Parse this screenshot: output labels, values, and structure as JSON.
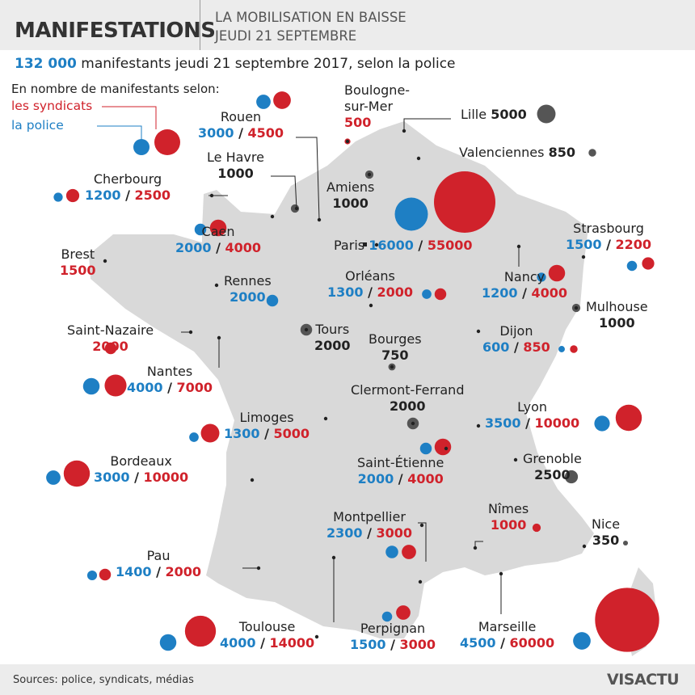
{
  "header": {
    "title": "MANIFESTATIONS",
    "subtitle_line1": "LA MOBILISATION EN BAISSE",
    "subtitle_line2": "JEUDI 21 SEPTEMBRE"
  },
  "headline": {
    "number": "132 000",
    "text": " manifestants jeudi 21 septembre 2017, selon la police"
  },
  "legend": {
    "title": "En nombre de manifestants selon:",
    "syndicats": "les syndicats",
    "police": "la police"
  },
  "colors": {
    "police": "#1e7fc4",
    "syndicats": "#d0222b",
    "total": "#555555",
    "map": "#d9d9d9"
  },
  "cities": [
    {
      "id": "boulogne",
      "name": "Boulogne-\nsur-Mer",
      "syndicats": "500"
    },
    {
      "id": "lille",
      "name": "Lille",
      "total": "5000"
    },
    {
      "id": "valenciennes",
      "name": "Valenciennes",
      "total": "850"
    },
    {
      "id": "rouen",
      "name": "Rouen",
      "police": "3000",
      "syndicats": "4500"
    },
    {
      "id": "lehavre",
      "name": "Le Havre",
      "total": "1000"
    },
    {
      "id": "amiens",
      "name": "Amiens",
      "total": "1000"
    },
    {
      "id": "cherbourg",
      "name": "Cherbourg",
      "police": "1200",
      "syndicats": "2500"
    },
    {
      "id": "caen",
      "name": "Caen",
      "police": "2000",
      "syndicats": "4000"
    },
    {
      "id": "paris",
      "name": "Paris",
      "police": "16000",
      "syndicats": "55000"
    },
    {
      "id": "strasbourg",
      "name": "Strasbourg",
      "police": "1500",
      "syndicats": "2200"
    },
    {
      "id": "brest",
      "name": "Brest",
      "syndicats": "1500"
    },
    {
      "id": "rennes",
      "name": "Rennes",
      "police": "2000"
    },
    {
      "id": "orleans",
      "name": "Orléans",
      "police": "1300",
      "syndicats": "2000"
    },
    {
      "id": "nancy",
      "name": "Nancy",
      "police": "1200",
      "syndicats": "4000"
    },
    {
      "id": "mulhouse",
      "name": "Mulhouse",
      "total": "1000"
    },
    {
      "id": "saintnazaire",
      "name": "Saint-Nazaire",
      "syndicats": "2000"
    },
    {
      "id": "tours",
      "name": "Tours",
      "total": "2000"
    },
    {
      "id": "bourges",
      "name": "Bourges",
      "total": "750"
    },
    {
      "id": "dijon",
      "name": "Dijon",
      "police": "600",
      "syndicats": "850"
    },
    {
      "id": "nantes",
      "name": "Nantes",
      "police": "4000",
      "syndicats": "7000"
    },
    {
      "id": "clermont",
      "name": "Clermont-Ferrand",
      "total": "2000"
    },
    {
      "id": "limoges",
      "name": "Limoges",
      "police": "1300",
      "syndicats": "5000"
    },
    {
      "id": "lyon",
      "name": "Lyon",
      "police": "3500",
      "syndicats": "10000"
    },
    {
      "id": "bordeaux",
      "name": "Bordeaux",
      "police": "3000",
      "syndicats": "10000"
    },
    {
      "id": "saintetienne",
      "name": "Saint-Étienne",
      "police": "2000",
      "syndicats": "4000"
    },
    {
      "id": "grenoble",
      "name": "Grenoble",
      "total": "2500"
    },
    {
      "id": "montpellier",
      "name": "Montpellier",
      "police": "2300",
      "syndicats": "3000"
    },
    {
      "id": "nimes",
      "name": "Nîmes",
      "syndicats": "1000"
    },
    {
      "id": "nice",
      "name": "Nice",
      "total": "350"
    },
    {
      "id": "pau",
      "name": "Pau",
      "police": "1400",
      "syndicats": "2000"
    },
    {
      "id": "toulouse",
      "name": "Toulouse",
      "police": "4000",
      "syndicats": "14000"
    },
    {
      "id": "perpignan",
      "name": "Perpignan",
      "police": "1500",
      "syndicats": "3000"
    },
    {
      "id": "marseille",
      "name": "Marseille",
      "police": "4500",
      "syndicats": "60000"
    }
  ],
  "footer": {
    "sources": "Sources: police, syndicats, médias",
    "brand": "VISACTU"
  }
}
